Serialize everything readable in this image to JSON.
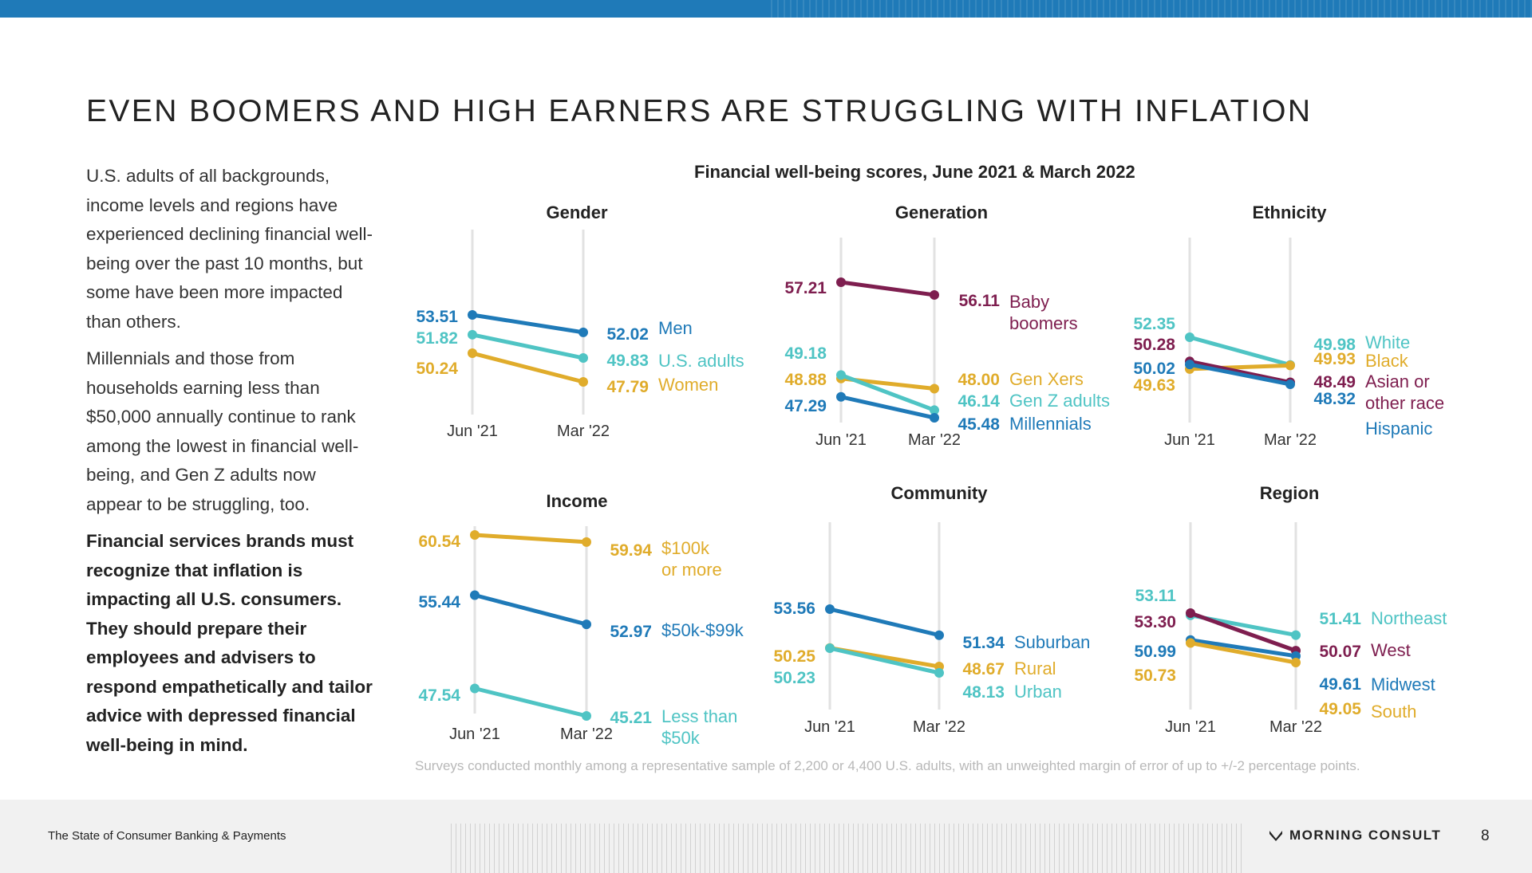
{
  "header": {
    "title": "EVEN BOOMERS AND HIGH EARNERS ARE STRUGGLING WITH INFLATION"
  },
  "body": {
    "p1": "U.S. adults of all backgrounds, income levels and regions have experienced declining financial well-being over the past 10 months, but some have been more impacted than others.",
    "p2": "Millennials and those from households earning less than $50,000 annually continue to rank among the lowest in financial well-being, and Gen Z adults now appear to be struggling, too.",
    "p3": "Financial services brands must recognize that inflation is impacting all U.S. consumers. They should prepare their employees and advisers to respond empathetically and tailor advice with depressed financial well-being in mind."
  },
  "main_title": "Financial well-being scores, June 2021 & March 2022",
  "footnote": "Surveys conducted monthly among a representative sample of 2,200 or 4,400 U.S. adults, with an unweighted margin of error of up to +/-2 percentage points.",
  "footer": {
    "left": "The State of Consumer Banking & Payments",
    "brand": "MORNING CONSULT",
    "page": "8"
  },
  "colors": {
    "blue": "#1f7ab8",
    "teal": "#4fc4c4",
    "gold": "#e0ac2b",
    "maroon": "#7e1e4f",
    "series_label_blue": "#1f7ab8"
  },
  "chart_data": [
    {
      "type": "line",
      "title": "Gender",
      "x": [
        "Jun '21",
        "Mar '22"
      ],
      "series": [
        {
          "name": "Men",
          "values": [
            53.51,
            52.02
          ],
          "color": "#1f7ab8"
        },
        {
          "name": "U.S. adults",
          "values": [
            51.82,
            49.83
          ],
          "color": "#4fc4c4"
        },
        {
          "name": "Women",
          "values": [
            50.24,
            47.79
          ],
          "color": "#e0ac2b"
        }
      ]
    },
    {
      "type": "line",
      "title": "Generation",
      "x": [
        "Jun '21",
        "Mar '22"
      ],
      "series": [
        {
          "name": "Baby boomers",
          "values": [
            57.21,
            56.11
          ],
          "color": "#7e1e4f"
        },
        {
          "name": "Gen Xers",
          "values": [
            48.88,
            48.0
          ],
          "color": "#e0ac2b"
        },
        {
          "name": "Gen Z adults",
          "values": [
            49.18,
            46.14
          ],
          "color": "#4fc4c4"
        },
        {
          "name": "Millennials",
          "values": [
            47.29,
            45.48
          ],
          "color": "#1f7ab8"
        }
      ]
    },
    {
      "type": "line",
      "title": "Ethnicity",
      "x": [
        "Jun '21",
        "Mar '22"
      ],
      "series": [
        {
          "name": "White",
          "values": [
            52.35,
            49.98
          ],
          "color": "#4fc4c4"
        },
        {
          "name": "Black",
          "values": [
            49.63,
            49.93
          ],
          "color": "#e0ac2b"
        },
        {
          "name": "Asian or other race",
          "values": [
            50.28,
            48.49
          ],
          "color": "#7e1e4f"
        },
        {
          "name": "Hispanic",
          "values": [
            50.02,
            48.32
          ],
          "color": "#1f7ab8"
        }
      ]
    },
    {
      "type": "line",
      "title": "Income",
      "x": [
        "Jun '21",
        "Mar '22"
      ],
      "series": [
        {
          "name": "$100k or more",
          "values": [
            60.54,
            59.94
          ],
          "color": "#e0ac2b"
        },
        {
          "name": "$50k-$99k",
          "values": [
            55.44,
            52.97
          ],
          "color": "#1f7ab8"
        },
        {
          "name": "Less than $50k",
          "values": [
            47.54,
            45.21
          ],
          "color": "#4fc4c4"
        }
      ]
    },
    {
      "type": "line",
      "title": "Community",
      "x": [
        "Jun '21",
        "Mar '22"
      ],
      "series": [
        {
          "name": "Suburban",
          "values": [
            53.56,
            51.34
          ],
          "color": "#1f7ab8"
        },
        {
          "name": "Rural",
          "values": [
            50.25,
            48.67
          ],
          "color": "#e0ac2b"
        },
        {
          "name": "Urban",
          "values": [
            50.23,
            48.13
          ],
          "color": "#4fc4c4"
        }
      ]
    },
    {
      "type": "line",
      "title": "Region",
      "x": [
        "Jun '21",
        "Mar '22"
      ],
      "series": [
        {
          "name": "Northeast",
          "values": [
            53.11,
            51.41
          ],
          "color": "#4fc4c4"
        },
        {
          "name": "West",
          "values": [
            53.3,
            50.07
          ],
          "color": "#7e1e4f"
        },
        {
          "name": "Midwest",
          "values": [
            50.99,
            49.61
          ],
          "color": "#1f7ab8"
        },
        {
          "name": "South",
          "values": [
            50.73,
            49.05
          ],
          "color": "#e0ac2b"
        }
      ]
    }
  ]
}
